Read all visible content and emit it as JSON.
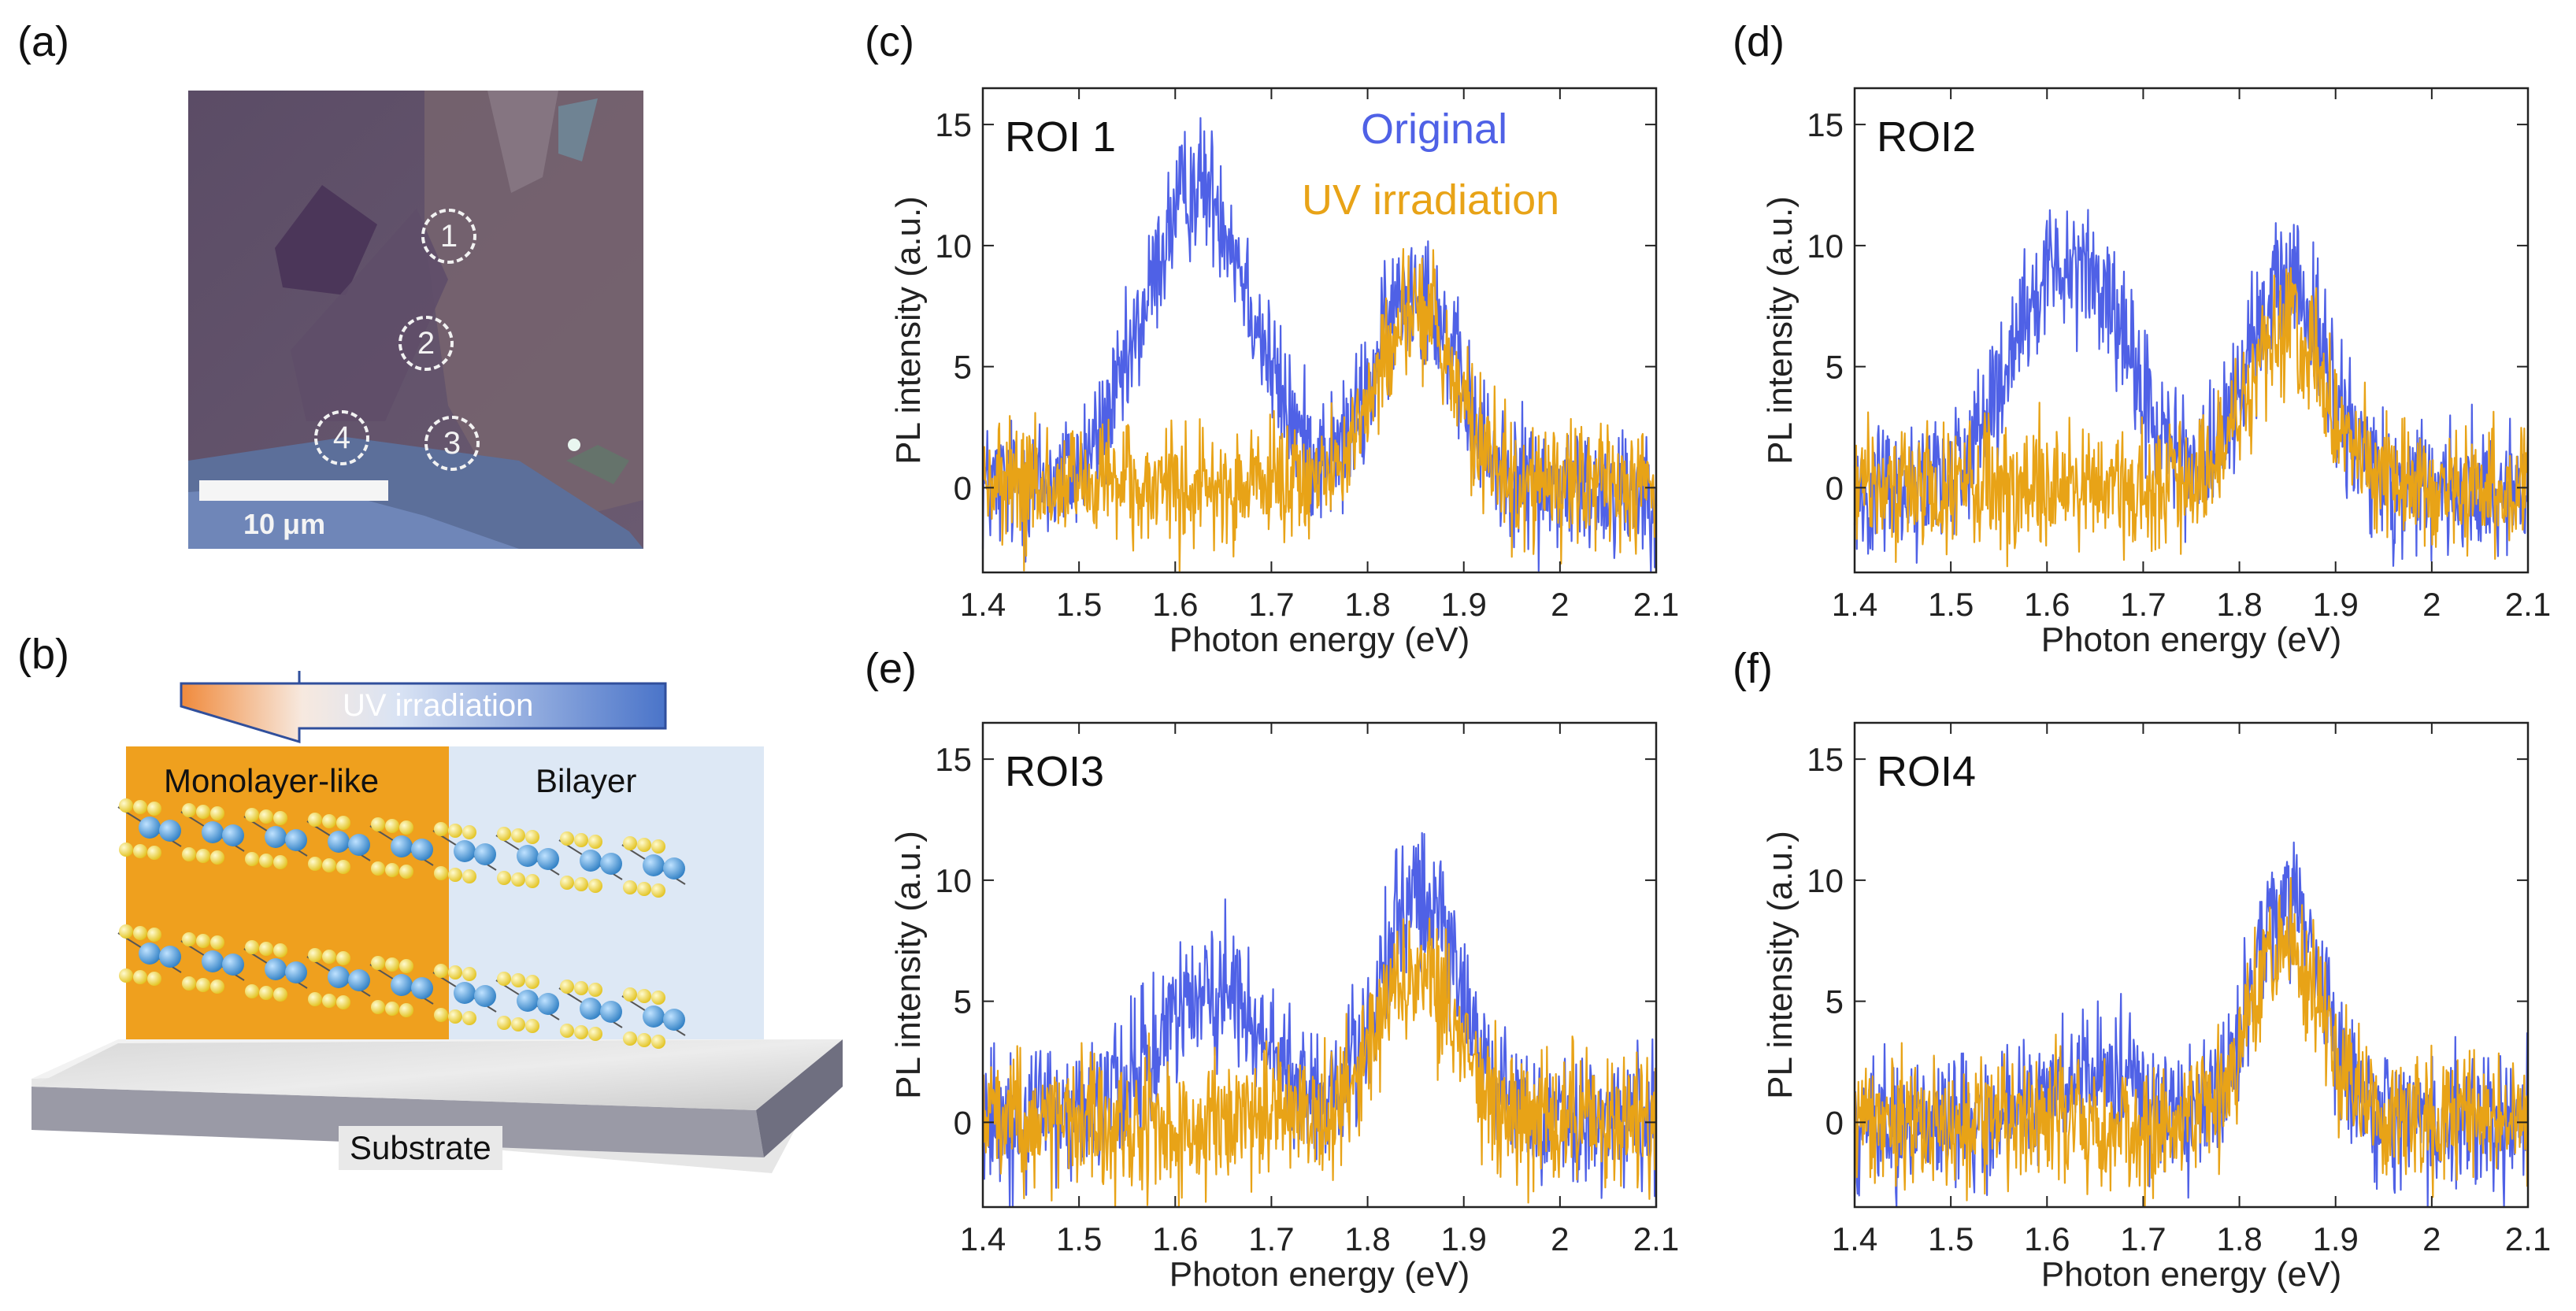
{
  "panels": {
    "a": "(a)",
    "b": "(b)",
    "c": "(c)",
    "d": "(d)",
    "e": "(e)",
    "f": "(f)"
  },
  "micrograph": {
    "scale_bar_label": "10 μm",
    "roi_markers": [
      "1",
      "2",
      "3",
      "4"
    ]
  },
  "schematic": {
    "arrow_label": "UV irradiation",
    "left_region_label": "Monolayer-like",
    "right_region_label": "Bilayer",
    "substrate_label": "Substrate"
  },
  "colors": {
    "original": "#4f61e6",
    "uv": "#e8a317",
    "monolayer_region": "#efa01e",
    "bilayer_region": "#dde8f5",
    "molybdenum_atom": "#3e95d6",
    "sulfur_atom": "#f2e142"
  },
  "chart_data": [
    {
      "type": "line",
      "panel": "(c)",
      "roi_label": "ROI 1",
      "xlabel": "Photon energy (eV)",
      "ylabel": "PL intensity (a.u.)",
      "xlim": [
        1.4,
        2.1
      ],
      "ylim": [
        -3.5,
        16.5
      ],
      "xticks": [
        "1.4",
        "1.5",
        "1.6",
        "1.7",
        "1.8",
        "1.9",
        "2",
        "2.1"
      ],
      "yticks": [
        "0",
        "5",
        "10",
        "15"
      ],
      "legend": [
        "Original",
        "UV irradiation"
      ],
      "series": [
        {
          "name": "Original",
          "peaks": [
            {
              "center": 1.625,
              "height": 12.5,
              "width": 0.055
            },
            {
              "center": 1.85,
              "height": 8.5,
              "width": 0.04
            }
          ],
          "noise": 2.2
        },
        {
          "name": "UV irradiation",
          "peaks": [
            {
              "center": 1.85,
              "height": 7.5,
              "width": 0.04
            }
          ],
          "noise": 2.0
        }
      ]
    },
    {
      "type": "line",
      "panel": "(d)",
      "roi_label": "ROI2",
      "xlabel": "Photon energy (eV)",
      "ylabel": "PL intensity (a.u.)",
      "xlim": [
        1.4,
        2.1
      ],
      "ylim": [
        -3.5,
        16.5
      ],
      "xticks": [
        "1.4",
        "1.5",
        "1.6",
        "1.7",
        "1.8",
        "1.9",
        "2",
        "2.1"
      ],
      "yticks": [
        "0",
        "5",
        "10",
        "15"
      ],
      "series": [
        {
          "name": "Original",
          "peaks": [
            {
              "center": 1.625,
              "height": 9.5,
              "width": 0.055
            },
            {
              "center": 1.85,
              "height": 8.5,
              "width": 0.04
            }
          ],
          "noise": 2.2
        },
        {
          "name": "UV irradiation",
          "peaks": [
            {
              "center": 1.85,
              "height": 6.5,
              "width": 0.04
            }
          ],
          "noise": 2.0
        }
      ]
    },
    {
      "type": "line",
      "panel": "(e)",
      "roi_label": "ROI3",
      "xlabel": "Photon energy (eV)",
      "ylabel": "PL intensity (a.u.)",
      "xlim": [
        1.4,
        2.1
      ],
      "ylim": [
        -3.5,
        16.5
      ],
      "xticks": [
        "1.4",
        "1.5",
        "1.6",
        "1.7",
        "1.8",
        "1.9",
        "2",
        "2.1"
      ],
      "yticks": [
        "0",
        "5",
        "10",
        "15"
      ],
      "series": [
        {
          "name": "Original",
          "peaks": [
            {
              "center": 1.64,
              "height": 5.5,
              "width": 0.055
            },
            {
              "center": 1.855,
              "height": 9.5,
              "width": 0.04
            }
          ],
          "noise": 2.3
        },
        {
          "name": "UV irradiation",
          "peaks": [
            {
              "center": 1.85,
              "height": 6.5,
              "width": 0.04
            }
          ],
          "noise": 2.3
        }
      ]
    },
    {
      "type": "line",
      "panel": "(f)",
      "roi_label": "ROI4",
      "xlabel": "Photon energy (eV)",
      "ylabel": "PL intensity (a.u.)",
      "xlim": [
        1.4,
        2.1
      ],
      "ylim": [
        -3.5,
        16.5
      ],
      "xticks": [
        "1.4",
        "1.5",
        "1.6",
        "1.7",
        "1.8",
        "1.9",
        "2",
        "2.1"
      ],
      "yticks": [
        "0",
        "5",
        "10",
        "15"
      ],
      "series": [
        {
          "name": "Original",
          "peaks": [
            {
              "center": 1.64,
              "height": 2.0,
              "width": 0.05
            },
            {
              "center": 1.85,
              "height": 9.5,
              "width": 0.035
            }
          ],
          "noise": 2.2
        },
        {
          "name": "UV irradiation",
          "peaks": [
            {
              "center": 1.85,
              "height": 7.5,
              "width": 0.035
            }
          ],
          "noise": 2.2
        }
      ]
    }
  ]
}
